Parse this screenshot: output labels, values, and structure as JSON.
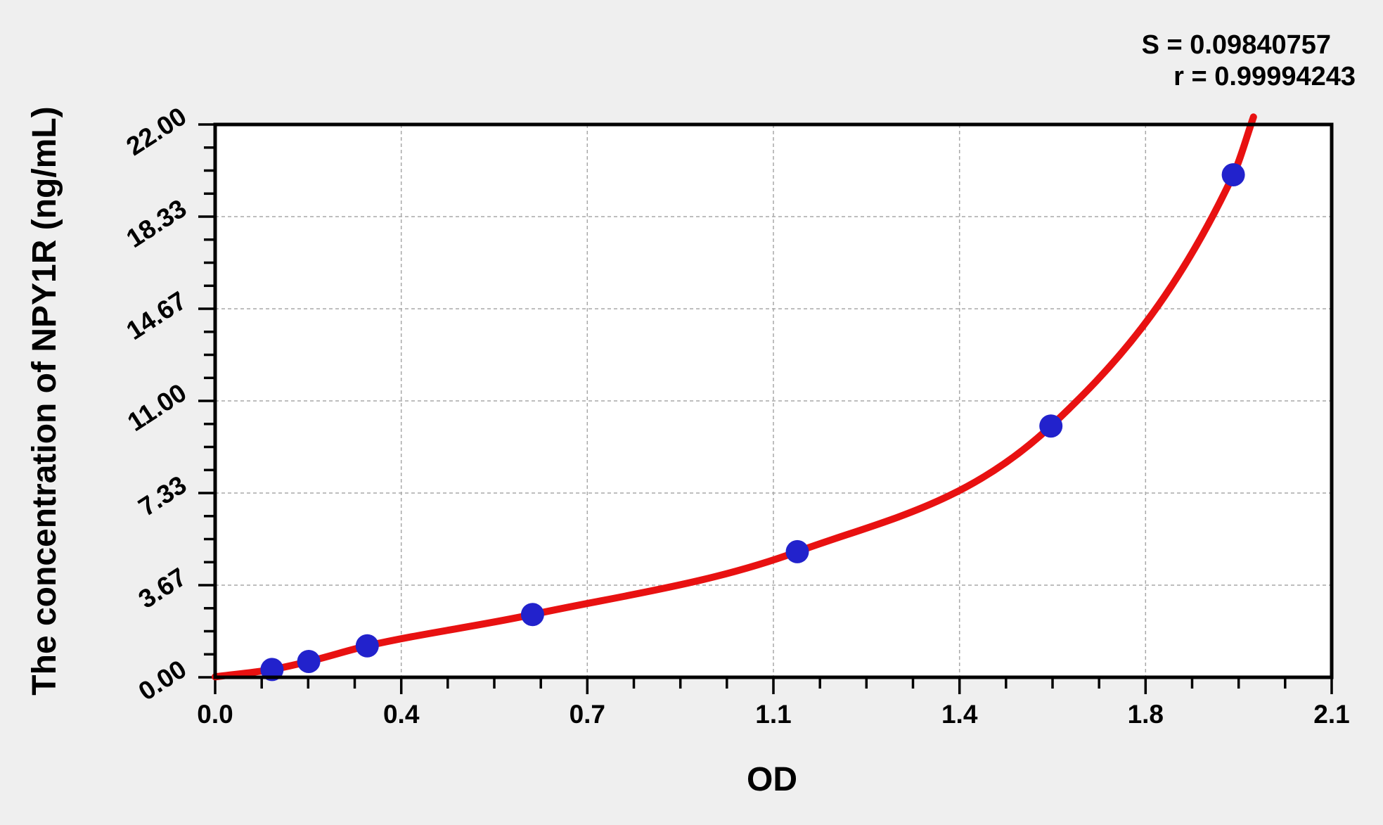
{
  "stats": {
    "s_label": "S = 0.09840757",
    "r_label": "r = 0.99994243"
  },
  "chart_data": {
    "type": "scatter",
    "title": "",
    "xlabel": "OD",
    "ylabel": "The concentration of NPY1R (ng/mL)",
    "xlim": [
      0,
      2.1
    ],
    "ylim": [
      0,
      22
    ],
    "x_major_ticks": {
      "values": [
        0,
        0.35,
        0.7,
        1.05,
        1.4,
        1.75,
        2.1
      ],
      "labels": [
        "0.0",
        "0.4",
        "0.7",
        "1.1",
        "1.4",
        "1.8",
        "2.1"
      ]
    },
    "y_major_ticks": {
      "values": [
        0,
        3.667,
        7.333,
        11,
        14.667,
        18.333,
        22
      ],
      "labels": [
        "0.00",
        "3.67",
        "7.33",
        "11.00",
        "14.67",
        "18.33",
        "22.00"
      ]
    },
    "minor_subdivisions_per_major": 4,
    "grid": {
      "style": "dashed",
      "at": "major-ticks",
      "legend": "none"
    },
    "series": [
      {
        "name": "standards",
        "marker": "circle",
        "points": [
          {
            "od": 0.107,
            "concentration": 0.31
          },
          {
            "od": 0.176,
            "concentration": 0.63
          },
          {
            "od": 0.286,
            "concentration": 1.25
          },
          {
            "od": 0.597,
            "concentration": 2.5
          },
          {
            "od": 1.095,
            "concentration": 5
          },
          {
            "od": 1.572,
            "concentration": 10
          },
          {
            "od": 1.915,
            "concentration": 20
          }
        ]
      }
    ],
    "fit_curve": {
      "name": "fitted standard curve",
      "anchors": [
        {
          "od": 0.0,
          "concentration": 0.02
        },
        {
          "od": 0.107,
          "concentration": 0.31
        },
        {
          "od": 0.176,
          "concentration": 0.63
        },
        {
          "od": 0.286,
          "concentration": 1.25
        },
        {
          "od": 0.597,
          "concentration": 2.5
        },
        {
          "od": 1.095,
          "concentration": 5
        },
        {
          "od": 1.572,
          "concentration": 10
        },
        {
          "od": 1.915,
          "concentration": 20
        },
        {
          "od": 1.953,
          "concentration": 22.3
        }
      ],
      "S": 0.09840757,
      "r": 0.99994243
    },
    "colors": {
      "curve": "#e81111",
      "points": "#2222cc",
      "grid": "#a8a8a8",
      "frame": "#000000",
      "plot_bg": "#ffffff",
      "page_bg": "#efefef",
      "text": "#000000"
    }
  }
}
